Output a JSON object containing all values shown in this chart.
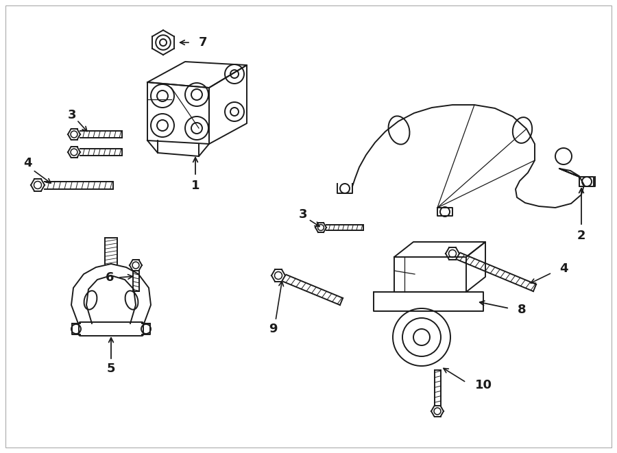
{
  "bg_color": "#ffffff",
  "line_color": "#1a1a1a",
  "lw": 1.4,
  "figsize": [
    9.0,
    6.61
  ],
  "dpi": 100
}
